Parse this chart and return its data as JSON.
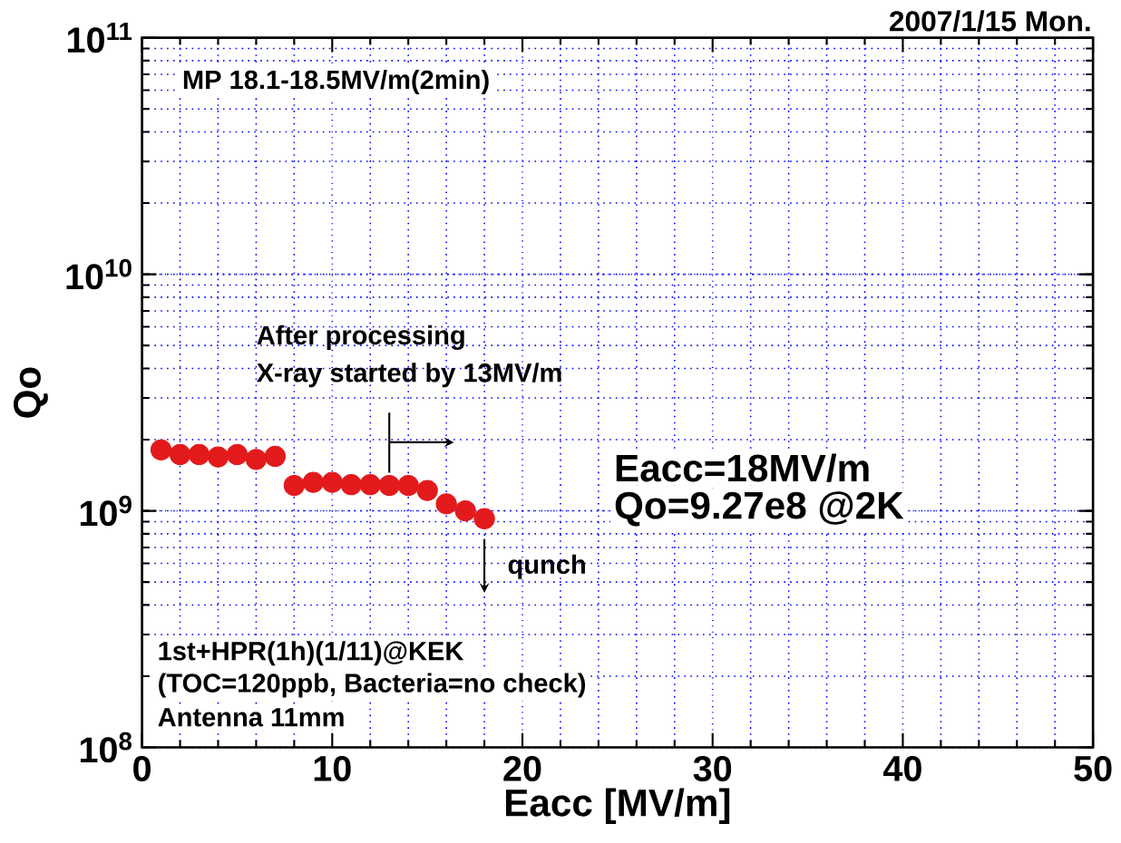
{
  "chart_data": {
    "type": "scatter",
    "title": "2007/1/15 Mon.",
    "xlabel": "Eacc [MV/m]",
    "ylabel": "Qo",
    "x": [
      1,
      2,
      3,
      4,
      5,
      6,
      7,
      8,
      9,
      10,
      11,
      12,
      13,
      14,
      15,
      16,
      17,
      18
    ],
    "series": [
      {
        "color": "#e31a1c",
        "values": [
          1810000000.0,
          1730000000.0,
          1730000000.0,
          1690000000.0,
          1730000000.0,
          1650000000.0,
          1700000000.0,
          1280000000.0,
          1320000000.0,
          1320000000.0,
          1290000000.0,
          1290000000.0,
          1280000000.0,
          1280000000.0,
          1220000000.0,
          1070000000.0,
          1000000000.0,
          927000000.0
        ]
      }
    ],
    "log": "y",
    "xlim": [
      0,
      50
    ],
    "ylim": [
      100000000.0,
      100000000000.0
    ],
    "xticks": [
      0,
      10,
      20,
      30,
      40,
      50
    ],
    "yticks": [
      {
        "value": 100000000.0,
        "label": "10$^{8}$"
      },
      {
        "value": 1000000000.0,
        "label": "10$^{9}$"
      },
      {
        "value": 10000000000.0,
        "label": "10$^{10}$"
      },
      {
        "value": 100000000000.0,
        "label": "10$^{11}$"
      }
    ],
    "grid": true,
    "marker": "circle",
    "annotations": [
      "MP 18.1-18.5MV/m(2min)",
      "After processing",
      {
        "text": "X-ray started by 13MV/m",
        "x": 13,
        "y": 1450000000.0
      },
      "Eacc=18MV/m",
      "Qo=9.27e8 @2K",
      "qunch",
      "1st+HPR(1h)(1/11)@KEK",
      "(TOC=120ppb, Bacteria=no check)",
      "Antenna 11mm"
    ]
  }
}
